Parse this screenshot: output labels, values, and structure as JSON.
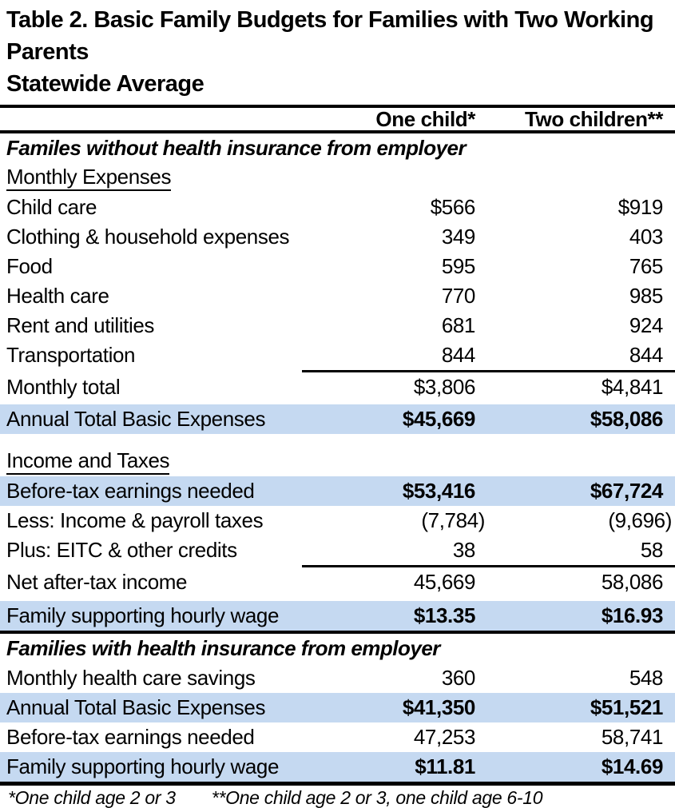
{
  "table": {
    "title_line1": "Table 2. Basic Family Budgets for Families with Two Working Parents",
    "title_line2": "Statewide Average",
    "col_headers": [
      "One child*",
      "Two children**"
    ],
    "highlight_color": "#c5d9f1",
    "rows": [
      {
        "type": "section_italic",
        "label": "Familes without health insurance from employer"
      },
      {
        "type": "section_underline",
        "label": "Monthly Expenses"
      },
      {
        "type": "data",
        "label": "Child care",
        "one_child": "$566",
        "two_children": "$919"
      },
      {
        "type": "data",
        "label": "Clothing & household expenses",
        "one_child": "349",
        "two_children": "403"
      },
      {
        "type": "data",
        "label": "Food",
        "one_child": "595",
        "two_children": "765"
      },
      {
        "type": "data",
        "label": "Health care",
        "one_child": "770",
        "two_children": "985"
      },
      {
        "type": "data",
        "label": "Rent and utilities",
        "one_child": "681",
        "two_children": "924"
      },
      {
        "type": "data",
        "label": "Transportation",
        "one_child": "844",
        "two_children": "844"
      },
      {
        "type": "data",
        "label": "Monthly total",
        "one_child": "$3,806",
        "two_children": "$4,841",
        "top_rule": true
      },
      {
        "type": "spacer",
        "height": 3
      },
      {
        "type": "data",
        "label": "Annual Total Basic Expenses",
        "one_child": "$45,669",
        "two_children": "$58,086",
        "highlight": true,
        "bold_values": true
      },
      {
        "type": "spacer",
        "height": 16
      },
      {
        "type": "section_underline",
        "label": "Income and Taxes"
      },
      {
        "type": "data",
        "label": "Before-tax earnings needed",
        "one_child": "$53,416",
        "two_children": "$67,724",
        "highlight": true,
        "bold_values": true
      },
      {
        "type": "data",
        "label": "Less: Income & payroll taxes",
        "one_child": "(7,784)",
        "two_children": "(9,696)",
        "paren": true
      },
      {
        "type": "data",
        "label": "Plus: EITC & other credits",
        "one_child": "38",
        "two_children": "58"
      },
      {
        "type": "data",
        "label": "Net after-tax income",
        "one_child": "45,669",
        "two_children": "58,086",
        "top_rule": true
      },
      {
        "type": "spacer",
        "height": 5
      },
      {
        "type": "data",
        "label": "Family supporting hourly wage",
        "one_child": "$13.35",
        "two_children": "$16.93",
        "highlight": true,
        "bold_values": true
      },
      {
        "type": "rule",
        "thickness": 4
      },
      {
        "type": "section_italic",
        "label": "Families with health insurance from employer"
      },
      {
        "type": "data",
        "label": "Monthly health care savings",
        "one_child": "360",
        "two_children": "548"
      },
      {
        "type": "data",
        "label": "Annual Total Basic Expenses",
        "one_child": "$41,350",
        "two_children": "$51,521",
        "highlight": true,
        "bold_values": true
      },
      {
        "type": "data",
        "label": "Before-tax earnings needed",
        "one_child": "47,253",
        "two_children": "58,741"
      },
      {
        "type": "data",
        "label": "Family supporting hourly wage",
        "one_child": "$11.81",
        "two_children": "$14.69",
        "highlight": true,
        "bold_values": true
      },
      {
        "type": "rule",
        "thickness": 5
      }
    ],
    "footnote_1": "*One child age 2 or 3",
    "footnote_2": "**One child age 2 or 3, one child age 6-10"
  }
}
